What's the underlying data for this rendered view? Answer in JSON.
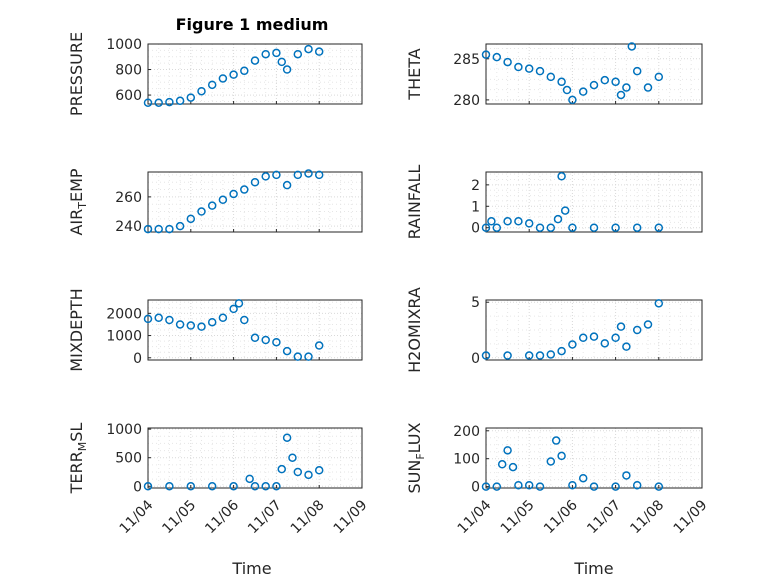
{
  "figure": {
    "title": "Figure 1 medium",
    "xlabel": "Time",
    "marker_color": "#0072BD",
    "x_ticks": [
      "11/04",
      "11/05",
      "11/06",
      "11/07",
      "11/08",
      "11/09"
    ],
    "grid": "major and minor, dotted"
  },
  "chart_data": [
    {
      "type": "scatter",
      "id": "pressure",
      "ylabel": "PRESSURE",
      "ylim": [
        530,
        1000
      ],
      "yticks": [
        "600",
        "800",
        "1000"
      ],
      "ytick_values": [
        600,
        800,
        1000
      ],
      "x": [
        "11/04 00:00",
        "11/04 06:00",
        "11/04 12:00",
        "11/04 18:00",
        "11/05 00:00",
        "11/05 06:00",
        "11/05 12:00",
        "11/05 18:00",
        "11/06 00:00",
        "11/06 06:00",
        "11/06 12:00",
        "11/06 18:00",
        "11/07 00:00",
        "11/07 03:00",
        "11/07 06:00",
        "11/07 12:00",
        "11/07 18:00",
        "11/08 00:00"
      ],
      "y": [
        540,
        540,
        545,
        555,
        580,
        630,
        680,
        730,
        760,
        790,
        870,
        920,
        930,
        860,
        800,
        920,
        960,
        940
      ]
    },
    {
      "type": "scatter",
      "id": "theta",
      "ylabel": "THETA",
      "ylim": [
        279.5,
        286.8
      ],
      "yticks": [
        "280",
        "285"
      ],
      "ytick_values": [
        280,
        285
      ],
      "x": [
        "11/04 00:00",
        "11/04 06:00",
        "11/04 12:00",
        "11/04 18:00",
        "11/05 00:00",
        "11/05 06:00",
        "11/05 12:00",
        "11/05 18:00",
        "11/05 21:00",
        "11/06 00:00",
        "11/06 06:00",
        "11/06 12:00",
        "11/06 18:00",
        "11/07 00:00",
        "11/07 03:00",
        "11/07 06:00",
        "11/07 09:00",
        "11/07 12:00",
        "11/07 18:00",
        "11/08 00:00"
      ],
      "y": [
        285.5,
        285.2,
        284.6,
        284.0,
        283.8,
        283.5,
        282.8,
        282.2,
        281.2,
        280.0,
        281.0,
        281.8,
        282.4,
        282.2,
        280.6,
        281.5,
        286.5,
        283.5,
        281.5,
        282.8
      ]
    },
    {
      "type": "scatter",
      "id": "air_temp",
      "ylabel": "AIR_TEMP",
      "ylim": [
        236,
        277
      ],
      "yticks": [
        "240",
        "260"
      ],
      "ytick_values": [
        240,
        260
      ],
      "x": [
        "11/04 00:00",
        "11/04 06:00",
        "11/04 12:00",
        "11/04 18:00",
        "11/05 00:00",
        "11/05 06:00",
        "11/05 12:00",
        "11/05 18:00",
        "11/06 00:00",
        "11/06 06:00",
        "11/06 12:00",
        "11/06 18:00",
        "11/07 00:00",
        "11/07 06:00",
        "11/07 12:00",
        "11/07 18:00",
        "11/08 00:00"
      ],
      "y": [
        238,
        238,
        238,
        240,
        245,
        250,
        254,
        258,
        262,
        265,
        270,
        274,
        275,
        268,
        275,
        276,
        275
      ]
    },
    {
      "type": "scatter",
      "id": "rainfall",
      "ylabel": "RAINFALL",
      "ylim": [
        -0.2,
        2.6
      ],
      "yticks": [
        "0",
        "1",
        "2"
      ],
      "ytick_values": [
        0,
        1,
        2
      ],
      "x": [
        "11/04 00:00",
        "11/04 03:00",
        "11/04 06:00",
        "11/04 12:00",
        "11/04 18:00",
        "11/05 00:00",
        "11/05 06:00",
        "11/05 12:00",
        "11/05 16:00",
        "11/05 18:00",
        "11/05 20:00",
        "11/06 00:00",
        "11/06 12:00",
        "11/07 00:00",
        "11/07 12:00",
        "11/08 00:00"
      ],
      "y": [
        0,
        0.3,
        0,
        0.3,
        0.3,
        0.2,
        0,
        0,
        0.4,
        2.4,
        0.8,
        0,
        0,
        0,
        0,
        0
      ]
    },
    {
      "type": "scatter",
      "id": "mixdepth",
      "ylabel": "MIXDEPTH",
      "ylim": [
        -100,
        2600
      ],
      "yticks": [
        "0",
        "1000",
        "2000"
      ],
      "ytick_values": [
        0,
        1000,
        2000
      ],
      "x": [
        "11/04 00:00",
        "11/04 06:00",
        "11/04 12:00",
        "11/04 18:00",
        "11/05 00:00",
        "11/05 06:00",
        "11/05 12:00",
        "11/05 18:00",
        "11/06 00:00",
        "11/06 03:00",
        "11/06 06:00",
        "11/06 12:00",
        "11/06 18:00",
        "11/07 00:00",
        "11/07 06:00",
        "11/07 12:00",
        "11/07 18:00",
        "11/08 00:00"
      ],
      "y": [
        1750,
        1800,
        1700,
        1500,
        1450,
        1400,
        1600,
        1800,
        2200,
        2450,
        1700,
        900,
        800,
        700,
        300,
        50,
        50,
        550
      ]
    },
    {
      "type": "scatter",
      "id": "h2omixra",
      "ylabel": "H2OMIXRA",
      "ylim": [
        -0.2,
        5.2
      ],
      "yticks": [
        "0",
        "5"
      ],
      "ytick_values": [
        0,
        5
      ],
      "x": [
        "11/04 00:00",
        "11/04 12:00",
        "11/05 00:00",
        "11/05 06:00",
        "11/05 12:00",
        "11/05 18:00",
        "11/06 00:00",
        "11/06 06:00",
        "11/06 12:00",
        "11/06 18:00",
        "11/07 00:00",
        "11/07 03:00",
        "11/07 06:00",
        "11/07 12:00",
        "11/07 18:00",
        "11/08 00:00"
      ],
      "y": [
        0.2,
        0.2,
        0.2,
        0.2,
        0.3,
        0.6,
        1.2,
        1.8,
        1.9,
        1.3,
        1.8,
        2.8,
        1.0,
        2.5,
        3.0,
        4.9
      ]
    },
    {
      "type": "scatter",
      "id": "terr_msl",
      "ylabel": "TERR_MSL",
      "ylim": [
        -30,
        1020
      ],
      "yticks": [
        "0",
        "500",
        "1000"
      ],
      "ytick_values": [
        0,
        500,
        1000
      ],
      "x": [
        "11/04 00:00",
        "11/04 12:00",
        "11/05 00:00",
        "11/05 12:00",
        "11/06 00:00",
        "11/06 09:00",
        "11/06 12:00",
        "11/06 18:00",
        "11/07 00:00",
        "11/07 03:00",
        "11/07 06:00",
        "11/07 09:00",
        "11/07 12:00",
        "11/07 18:00",
        "11/08 00:00"
      ],
      "y": [
        0,
        0,
        0,
        0,
        0,
        130,
        0,
        0,
        0,
        300,
        850,
        500,
        250,
        200,
        280
      ]
    },
    {
      "type": "scatter",
      "id": "sun_flux",
      "ylabel": "SUN_FLUX",
      "ylim": [
        -5,
        210
      ],
      "yticks": [
        "0",
        "100",
        "200"
      ],
      "ytick_values": [
        0,
        100,
        200
      ],
      "x": [
        "11/04 00:00",
        "11/04 06:00",
        "11/04 09:00",
        "11/04 12:00",
        "11/04 15:00",
        "11/04 18:00",
        "11/05 00:00",
        "11/05 06:00",
        "11/05 12:00",
        "11/05 15:00",
        "11/05 18:00",
        "11/06 00:00",
        "11/06 06:00",
        "11/06 12:00",
        "11/07 00:00",
        "11/07 06:00",
        "11/07 12:00",
        "11/08 00:00"
      ],
      "y": [
        0,
        0,
        80,
        130,
        70,
        5,
        5,
        0,
        90,
        165,
        110,
        5,
        30,
        0,
        0,
        40,
        5,
        0
      ]
    }
  ]
}
